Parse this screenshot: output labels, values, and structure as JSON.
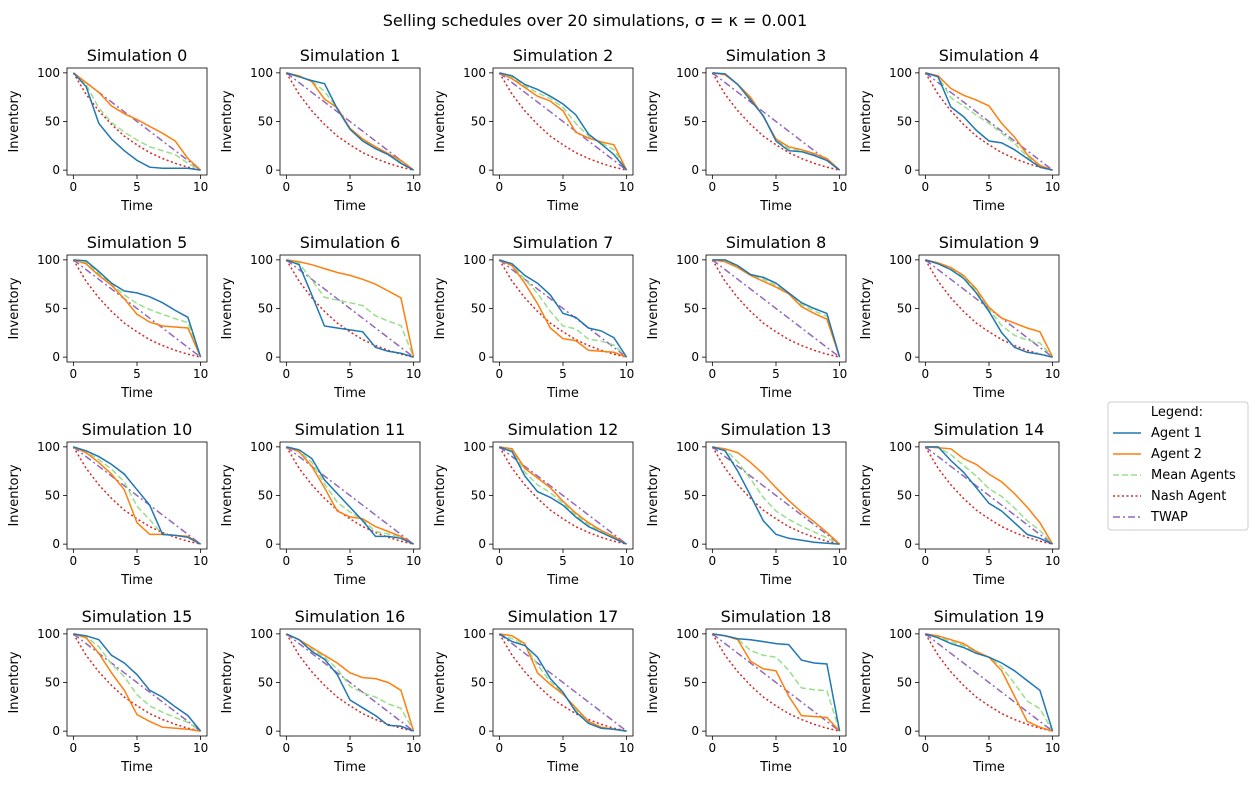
{
  "figure": {
    "title": "Selling schedules over 20 simulations, σ = κ = 0.001"
  },
  "legend": {
    "title": "Legend:",
    "position": "right"
  },
  "series_styles": [
    {
      "name": "Agent 1",
      "color": "#1f77b4",
      "dash": "solid"
    },
    {
      "name": "Agent 2",
      "color": "#ff7f0e",
      "dash": "solid"
    },
    {
      "name": "Mean Agents",
      "color": "#98df8a",
      "dash": "dashed"
    },
    {
      "name": "Nash Agent",
      "color": "#d62728",
      "dash": "dotted"
    },
    {
      "name": "TWAP",
      "color": "#9467bd",
      "dash": "dashdot"
    }
  ],
  "chart_data": {
    "type": "line",
    "layout": "grid 4x5",
    "x": [
      0,
      1,
      2,
      3,
      4,
      5,
      6,
      7,
      8,
      9,
      10
    ],
    "xlabel": "Time",
    "ylabel": "Inventory",
    "xticks": [
      0,
      5,
      10
    ],
    "yticks": [
      0,
      50,
      100
    ],
    "xlim": [
      -0.5,
      10.5
    ],
    "ylim": [
      -5,
      105
    ],
    "grid": false,
    "nash": [
      100,
      78,
      61,
      47,
      35,
      26,
      18,
      12,
      7,
      3,
      0
    ],
    "twap": [
      100,
      90,
      80,
      70,
      60,
      50,
      40,
      30,
      20,
      10,
      0
    ],
    "subplots": [
      {
        "title": "Simulation 0",
        "agent1": [
          100,
          86,
          48,
          32,
          20,
          10,
          3,
          2,
          2,
          2,
          0
        ],
        "agent2": [
          100,
          90,
          80,
          66,
          58,
          52,
          45,
          38,
          30,
          12,
          0
        ]
      },
      {
        "title": "Simulation 1",
        "agent1": [
          100,
          96,
          92,
          89,
          63,
          42,
          30,
          22,
          16,
          7,
          0
        ],
        "agent2": [
          100,
          97,
          91,
          73,
          64,
          43,
          32,
          24,
          17,
          10,
          0
        ]
      },
      {
        "title": "Simulation 2",
        "agent1": [
          100,
          97,
          88,
          83,
          76,
          68,
          57,
          37,
          27,
          16,
          0
        ],
        "agent2": [
          100,
          94,
          85,
          76,
          71,
          61,
          39,
          33,
          29,
          26,
          0
        ]
      },
      {
        "title": "Simulation 3",
        "agent1": [
          100,
          99,
          88,
          72,
          56,
          30,
          20,
          19,
          15,
          10,
          0
        ],
        "agent2": [
          100,
          98,
          88,
          75,
          55,
          32,
          24,
          21,
          17,
          12,
          0
        ]
      },
      {
        "title": "Simulation 4",
        "agent1": [
          100,
          96,
          65,
          55,
          41,
          30,
          28,
          21,
          12,
          3,
          0
        ],
        "agent2": [
          100,
          97,
          84,
          77,
          72,
          66,
          48,
          34,
          16,
          5,
          0
        ]
      },
      {
        "title": "Simulation 5",
        "agent1": [
          100,
          99,
          88,
          76,
          68,
          66,
          62,
          56,
          48,
          41,
          0
        ],
        "agent2": [
          100,
          96,
          84,
          74,
          60,
          44,
          36,
          32,
          31,
          30,
          0
        ]
      },
      {
        "title": "Simulation 6",
        "agent1": [
          100,
          95,
          64,
          32,
          30,
          28,
          26,
          10,
          6,
          4,
          0
        ],
        "agent2": [
          100,
          98,
          95,
          91,
          87,
          84,
          80,
          75,
          68,
          61,
          0
        ]
      },
      {
        "title": "Simulation 7",
        "agent1": [
          100,
          96,
          84,
          76,
          64,
          45,
          41,
          30,
          27,
          20,
          0
        ],
        "agent2": [
          100,
          94,
          76,
          55,
          30,
          19,
          17,
          7,
          6,
          5,
          0
        ]
      },
      {
        "title": "Simulation 8",
        "agent1": [
          100,
          100,
          94,
          85,
          82,
          76,
          66,
          56,
          50,
          45,
          0
        ],
        "agent2": [
          100,
          98,
          92,
          84,
          78,
          72,
          65,
          52,
          45,
          39,
          0
        ]
      },
      {
        "title": "Simulation 9",
        "agent1": [
          100,
          96,
          90,
          81,
          66,
          47,
          25,
          10,
          5,
          3,
          0
        ],
        "agent2": [
          100,
          97,
          92,
          84,
          70,
          51,
          40,
          35,
          30,
          26,
          0
        ]
      },
      {
        "title": "Simulation 10",
        "agent1": [
          100,
          96,
          90,
          82,
          72,
          56,
          40,
          10,
          9,
          7,
          0
        ],
        "agent2": [
          100,
          94,
          84,
          72,
          56,
          22,
          10,
          10,
          9,
          8,
          0
        ]
      },
      {
        "title": "Simulation 11",
        "agent1": [
          100,
          97,
          88,
          66,
          52,
          38,
          24,
          8,
          8,
          6,
          0
        ],
        "agent2": [
          100,
          95,
          80,
          58,
          34,
          28,
          26,
          18,
          13,
          8,
          0
        ]
      },
      {
        "title": "Simulation 12",
        "agent1": [
          100,
          95,
          70,
          54,
          48,
          40,
          28,
          18,
          12,
          6,
          0
        ],
        "agent2": [
          100,
          98,
          78,
          68,
          58,
          44,
          32,
          22,
          14,
          8,
          0
        ]
      },
      {
        "title": "Simulation 13",
        "agent1": [
          100,
          96,
          75,
          50,
          24,
          10,
          6,
          4,
          2,
          1,
          0
        ],
        "agent2": [
          100,
          98,
          94,
          84,
          72,
          58,
          45,
          33,
          23,
          12,
          0
        ]
      },
      {
        "title": "Simulation 14",
        "agent1": [
          100,
          100,
          86,
          74,
          58,
          42,
          34,
          22,
          10,
          6,
          0
        ],
        "agent2": [
          100,
          99,
          98,
          88,
          82,
          72,
          64,
          52,
          38,
          22,
          0
        ]
      },
      {
        "title": "Simulation 15",
        "agent1": [
          100,
          98,
          94,
          78,
          70,
          58,
          42,
          35,
          25,
          16,
          0
        ],
        "agent2": [
          100,
          96,
          80,
          60,
          42,
          17,
          10,
          4,
          3,
          2,
          0
        ]
      },
      {
        "title": "Simulation 16",
        "agent1": [
          100,
          94,
          82,
          74,
          58,
          32,
          24,
          16,
          6,
          5,
          0
        ],
        "agent2": [
          100,
          94,
          86,
          78,
          70,
          60,
          55,
          54,
          50,
          42,
          0
        ]
      },
      {
        "title": "Simulation 17",
        "agent1": [
          100,
          92,
          88,
          76,
          54,
          40,
          20,
          8,
          3,
          2,
          0
        ],
        "agent2": [
          100,
          98,
          90,
          60,
          48,
          38,
          24,
          10,
          4,
          2,
          0
        ]
      },
      {
        "title": "Simulation 18",
        "agent1": [
          100,
          98,
          95,
          94,
          92,
          90,
          89,
          73,
          70,
          69,
          0
        ],
        "agent2": [
          100,
          98,
          94,
          72,
          64,
          62,
          36,
          16,
          15,
          14,
          0
        ]
      },
      {
        "title": "Simulation 19",
        "agent1": [
          100,
          96,
          90,
          86,
          80,
          76,
          70,
          62,
          52,
          42,
          0
        ],
        "agent2": [
          100,
          98,
          94,
          90,
          82,
          76,
          62,
          36,
          10,
          4,
          0
        ]
      }
    ]
  }
}
